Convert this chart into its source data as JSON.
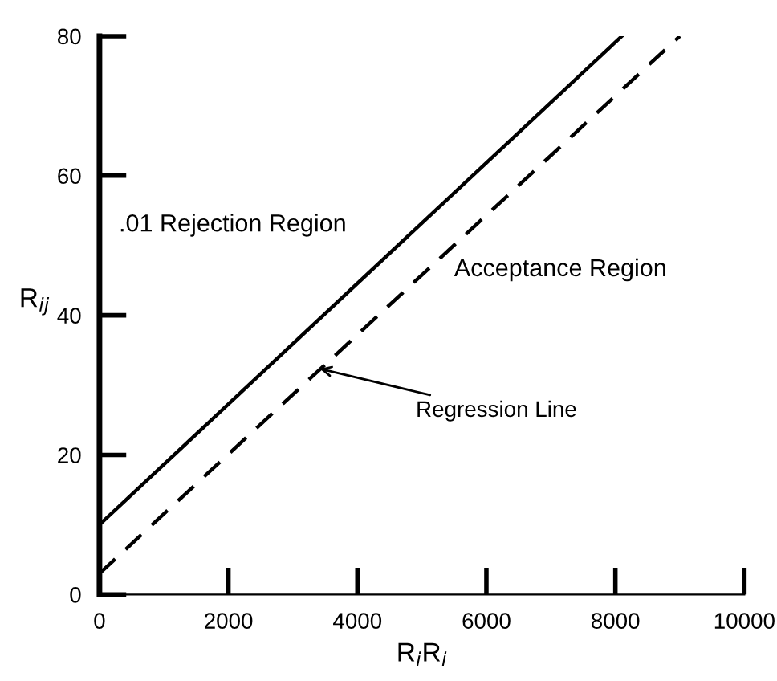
{
  "chart_data": {
    "type": "line",
    "xlabel": "R$_{i}$R$_{i}$",
    "ylabel": "R$_{ij}$",
    "xlim": [
      0,
      10000
    ],
    "ylim": [
      0,
      80
    ],
    "xticks": [
      0,
      2000,
      4000,
      6000,
      8000,
      10000
    ],
    "yticks": [
      0,
      20,
      40,
      60,
      80
    ],
    "grid": false,
    "legend": false,
    "marker": "none",
    "series": [
      {
        "color": "#000000",
        "x": [
          0,
          8100
        ],
        "values": [
          10,
          80
        ],
        "line_style": "solid"
      },
      {
        "color": "#000000",
        "x": [
          0,
          9000
        ],
        "values": [
          3,
          80
        ],
        "line_style": "dashed"
      }
    ],
    "annotations": [
      ".01 Rejection Region",
      "Acceptance Region",
      {
        "text": "Regression Line",
        "x": 3350,
        "y": 32.5
      }
    ]
  }
}
